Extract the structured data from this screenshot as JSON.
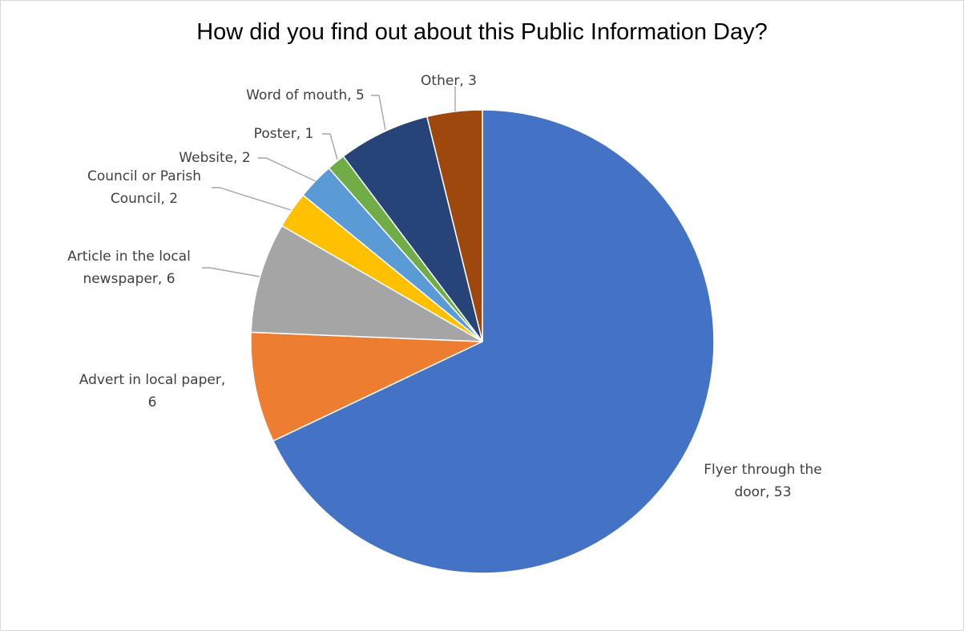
{
  "chart_data": {
    "type": "pie",
    "title": "How did you find out about this Public Information Day?",
    "start_angle_deg": 0,
    "direction": "clockwise",
    "slices": [
      {
        "label": "Flyer through the door",
        "value": 53,
        "color": "#4472C4",
        "label_lines": [
          "Flyer through the",
          "door, 53"
        ]
      },
      {
        "label": "Advert in local paper",
        "value": 6,
        "color": "#ED7D31",
        "label_lines": [
          "Advert in local paper,",
          "6"
        ]
      },
      {
        "label": "Article in the local newspaper",
        "value": 6,
        "color": "#A5A5A5",
        "label_lines": [
          "Article in the local",
          "newspaper, 6"
        ]
      },
      {
        "label": "Council or Parish Council",
        "value": 2,
        "color": "#FFC000",
        "label_lines": [
          "Council or Parish",
          "Council, 2"
        ]
      },
      {
        "label": "Website",
        "value": 2,
        "color": "#5B9BD5",
        "label_lines": [
          "Website, 2"
        ]
      },
      {
        "label": "Poster",
        "value": 1,
        "color": "#70AD47",
        "label_lines": [
          "Poster, 1"
        ]
      },
      {
        "label": "Word of mouth",
        "value": 5,
        "color": "#264478",
        "label_lines": [
          "Word of mouth, 5"
        ]
      },
      {
        "label": "Other",
        "value": 3,
        "color": "#9E480E",
        "label_lines": [
          "Other, 3"
        ]
      }
    ]
  }
}
